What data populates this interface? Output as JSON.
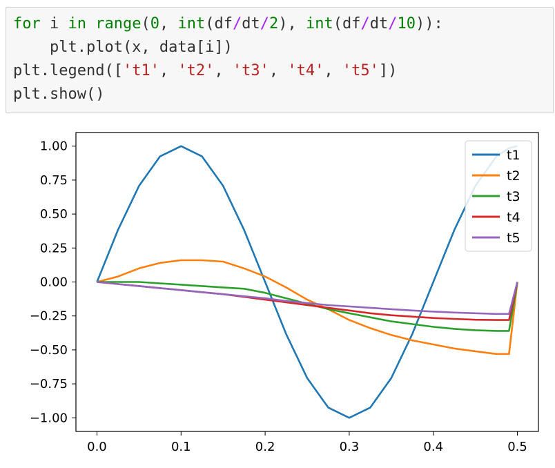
{
  "code_lines": [
    [
      {
        "t": "for",
        "c": "kw"
      },
      {
        "t": " i ",
        "c": "plain"
      },
      {
        "t": "in",
        "c": "kw"
      },
      {
        "t": " ",
        "c": "plain"
      },
      {
        "t": "range",
        "c": "kw"
      },
      {
        "t": "(",
        "c": "plain"
      },
      {
        "t": "0",
        "c": "num"
      },
      {
        "t": ", ",
        "c": "plain"
      },
      {
        "t": "int",
        "c": "kw"
      },
      {
        "t": "(df",
        "c": "plain"
      },
      {
        "t": "/",
        "c": "op"
      },
      {
        "t": "dt",
        "c": "plain"
      },
      {
        "t": "/",
        "c": "op"
      },
      {
        "t": "2",
        "c": "num"
      },
      {
        "t": "), ",
        "c": "plain"
      },
      {
        "t": "int",
        "c": "kw"
      },
      {
        "t": "(df",
        "c": "plain"
      },
      {
        "t": "/",
        "c": "op"
      },
      {
        "t": "dt",
        "c": "plain"
      },
      {
        "t": "/",
        "c": "op"
      },
      {
        "t": "10",
        "c": "num"
      },
      {
        "t": ")):",
        "c": "plain"
      }
    ],
    [
      {
        "t": "    plt.plot(x, data[i])",
        "c": "plain"
      }
    ],
    [
      {
        "t": "plt.legend([",
        "c": "plain"
      },
      {
        "t": "'t1'",
        "c": "str"
      },
      {
        "t": ", ",
        "c": "plain"
      },
      {
        "t": "'t2'",
        "c": "str"
      },
      {
        "t": ", ",
        "c": "plain"
      },
      {
        "t": "'t3'",
        "c": "str"
      },
      {
        "t": ", ",
        "c": "plain"
      },
      {
        "t": "'t4'",
        "c": "str"
      },
      {
        "t": ", ",
        "c": "plain"
      },
      {
        "t": "'t5'",
        "c": "str"
      },
      {
        "t": "])",
        "c": "plain"
      }
    ],
    [
      {
        "t": "plt.show()",
        "c": "plain"
      }
    ]
  ],
  "chart_data": {
    "type": "line",
    "title": "",
    "xlabel": "",
    "ylabel": "",
    "xlim": [
      -0.025,
      0.525
    ],
    "ylim": [
      -1.1,
      1.1
    ],
    "xticks": [
      0.0,
      0.1,
      0.2,
      0.3,
      0.4,
      0.5
    ],
    "xtick_labels": [
      "0.0",
      "0.1",
      "0.2",
      "0.3",
      "0.4",
      "0.5"
    ],
    "yticks": [
      1.0,
      0.75,
      0.5,
      0.25,
      0.0,
      -0.25,
      -0.5,
      -0.75,
      -1.0
    ],
    "ytick_labels": [
      "1.00",
      "0.75",
      "0.50",
      "0.25",
      "0.00",
      "−0.25",
      "−0.50",
      "−0.75",
      "−1.00"
    ],
    "grid": false,
    "legend_position": "top-right",
    "x": [
      0.0,
      0.025,
      0.05,
      0.075,
      0.1,
      0.125,
      0.15,
      0.175,
      0.2,
      0.225,
      0.25,
      0.275,
      0.3,
      0.325,
      0.35,
      0.375,
      0.4,
      0.425,
      0.45,
      0.475,
      0.49,
      0.5
    ],
    "series": [
      {
        "name": "t1",
        "color": "#1f77b4",
        "values": [
          0.0,
          0.383,
          0.707,
          0.924,
          1.0,
          0.924,
          0.707,
          0.383,
          0.0,
          -0.383,
          -0.707,
          -0.924,
          -1.0,
          -0.924,
          -0.707,
          -0.383,
          0.0,
          0.383,
          0.707,
          0.924,
          0.985,
          1.0
        ]
      },
      {
        "name": "t2",
        "color": "#ff7f0e",
        "values": [
          0.0,
          0.04,
          0.1,
          0.14,
          0.16,
          0.16,
          0.15,
          0.1,
          0.04,
          -0.04,
          -0.13,
          -0.2,
          -0.28,
          -0.34,
          -0.39,
          -0.43,
          -0.46,
          -0.49,
          -0.51,
          -0.53,
          -0.53,
          0.0
        ]
      },
      {
        "name": "t3",
        "color": "#2ca02c",
        "values": [
          0.0,
          0.0,
          0.0,
          -0.01,
          -0.02,
          -0.03,
          -0.04,
          -0.05,
          -0.08,
          -0.12,
          -0.16,
          -0.2,
          -0.23,
          -0.26,
          -0.29,
          -0.31,
          -0.33,
          -0.345,
          -0.355,
          -0.36,
          -0.36,
          0.0
        ]
      },
      {
        "name": "t4",
        "color": "#d62728",
        "values": [
          0.0,
          -0.015,
          -0.03,
          -0.045,
          -0.06,
          -0.075,
          -0.09,
          -0.11,
          -0.13,
          -0.15,
          -0.17,
          -0.19,
          -0.21,
          -0.23,
          -0.245,
          -0.255,
          -0.265,
          -0.272,
          -0.278,
          -0.28,
          -0.28,
          0.0
        ]
      },
      {
        "name": "t5",
        "color": "#9467bd",
        "values": [
          0.0,
          -0.015,
          -0.03,
          -0.045,
          -0.06,
          -0.075,
          -0.09,
          -0.105,
          -0.12,
          -0.14,
          -0.155,
          -0.17,
          -0.18,
          -0.19,
          -0.2,
          -0.21,
          -0.218,
          -0.225,
          -0.23,
          -0.235,
          -0.235,
          0.0
        ]
      }
    ]
  }
}
